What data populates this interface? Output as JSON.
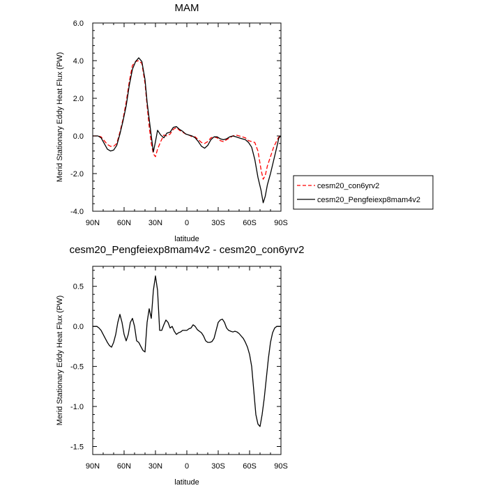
{
  "chart_data": [
    {
      "type": "line",
      "title": "MAM",
      "xlabel": "latitude",
      "ylabel": "Merid Stationary Eddy Heat Flux (PW)",
      "xlim": [
        90,
        -90
      ],
      "ylim": [
        -4.0,
        6.0
      ],
      "x_ticks": [
        {
          "value": 90,
          "label": "90N"
        },
        {
          "value": 60,
          "label": "60N"
        },
        {
          "value": 30,
          "label": "30N"
        },
        {
          "value": 0,
          "label": "0"
        },
        {
          "value": -30,
          "label": "30S"
        },
        {
          "value": -60,
          "label": "60S"
        },
        {
          "value": -90,
          "label": "90S"
        }
      ],
      "y_ticks": [
        {
          "value": 6.0,
          "label": "6.0"
        },
        {
          "value": 4.0,
          "label": "4.0"
        },
        {
          "value": 2.0,
          "label": "2.0"
        },
        {
          "value": 0.0,
          "label": "0.0"
        },
        {
          "value": -2.0,
          "label": "-2.0"
        },
        {
          "value": -4.0,
          "label": "-4.0"
        }
      ],
      "legend_position": "right",
      "series": [
        {
          "name": "cesm20_con6yrv2",
          "color": "#ff0000",
          "style": "dashed",
          "x": [
            90,
            85,
            82,
            79,
            76,
            73,
            70,
            67,
            64,
            61,
            58,
            55,
            52,
            49,
            46,
            43,
            40,
            38,
            36,
            34,
            32,
            30,
            28,
            25,
            22,
            19,
            16,
            13,
            10,
            7,
            4,
            1,
            -2,
            -5,
            -8,
            -11,
            -14,
            -17,
            -20,
            -23,
            -26,
            -29,
            -32,
            -35,
            -38,
            -41,
            -44,
            -47,
            -50,
            -53,
            -56,
            -59,
            -62,
            -65,
            -68,
            -71,
            -73,
            -75,
            -77,
            -80,
            -83,
            -86,
            -88,
            -90
          ],
          "y": [
            0.0,
            0.0,
            -0.05,
            -0.25,
            -0.45,
            -0.55,
            -0.55,
            -0.4,
            0.2,
            0.9,
            1.8,
            2.9,
            3.75,
            3.95,
            4.0,
            3.85,
            2.8,
            1.6,
            0.5,
            -0.4,
            -0.95,
            -1.1,
            -0.7,
            -0.3,
            0.05,
            0.0,
            0.1,
            0.35,
            0.45,
            0.3,
            0.2,
            0.1,
            0.05,
            -0.05,
            -0.05,
            -0.2,
            -0.35,
            -0.4,
            -0.3,
            -0.1,
            -0.05,
            -0.1,
            -0.25,
            -0.3,
            -0.2,
            -0.1,
            0.0,
            0.05,
            0.0,
            -0.05,
            -0.1,
            -0.25,
            -0.3,
            -0.35,
            -0.8,
            -1.8,
            -2.3,
            -2.1,
            -1.6,
            -1.1,
            -0.6,
            -0.25,
            -0.05,
            0.0
          ]
        },
        {
          "name": "cesm20_Pengfeiexp8mam4v2",
          "color": "#000000",
          "style": "solid",
          "x": [
            90,
            85,
            82,
            79,
            76,
            73,
            70,
            67,
            64,
            61,
            58,
            55,
            52,
            49,
            46,
            43,
            40,
            38,
            36,
            34,
            32,
            30,
            28,
            25,
            22,
            19,
            16,
            13,
            10,
            7,
            4,
            1,
            -2,
            -5,
            -8,
            -11,
            -14,
            -17,
            -20,
            -23,
            -26,
            -29,
            -32,
            -35,
            -38,
            -41,
            -44,
            -47,
            -50,
            -53,
            -56,
            -59,
            -62,
            -65,
            -68,
            -71,
            -73,
            -75,
            -77,
            -80,
            -83,
            -86,
            -88,
            -90
          ],
          "y": [
            0.0,
            0.0,
            -0.1,
            -0.4,
            -0.7,
            -0.8,
            -0.75,
            -0.5,
            0.1,
            0.8,
            1.6,
            2.7,
            3.55,
            3.95,
            4.15,
            3.95,
            3.0,
            1.8,
            0.9,
            0.0,
            -0.85,
            -0.3,
            0.3,
            0.05,
            -0.1,
            0.15,
            0.2,
            0.45,
            0.5,
            0.35,
            0.25,
            0.1,
            0.05,
            0.0,
            -0.1,
            -0.3,
            -0.55,
            -0.65,
            -0.5,
            -0.2,
            -0.05,
            -0.05,
            -0.15,
            -0.2,
            -0.15,
            -0.05,
            0.0,
            -0.05,
            -0.1,
            -0.15,
            -0.2,
            -0.35,
            -0.6,
            -1.25,
            -2.2,
            -2.9,
            -3.55,
            -3.2,
            -2.6,
            -2.0,
            -1.3,
            -0.6,
            -0.1,
            0.0
          ]
        }
      ]
    },
    {
      "type": "line",
      "title": "cesm20_Pengfeiexp8mam4v2 - cesm20_con6yrv2",
      "xlabel": "latitude",
      "ylabel": "Merid Stationary Eddy Heat Flux (PW)",
      "xlim": [
        90,
        -90
      ],
      "ylim": [
        -1.6,
        0.75
      ],
      "x_ticks": [
        {
          "value": 90,
          "label": "90N"
        },
        {
          "value": 60,
          "label": "60N"
        },
        {
          "value": 30,
          "label": "30N"
        },
        {
          "value": 0,
          "label": "0"
        },
        {
          "value": -30,
          "label": "30S"
        },
        {
          "value": -60,
          "label": "60S"
        },
        {
          "value": -90,
          "label": "90S"
        }
      ],
      "y_ticks": [
        {
          "value": 0.5,
          "label": "0.5"
        },
        {
          "value": 0.0,
          "label": "0.0"
        },
        {
          "value": -0.5,
          "label": "-0.5"
        },
        {
          "value": -1.0,
          "label": "-1.0"
        },
        {
          "value": -1.5,
          "label": "-1.5"
        }
      ],
      "series": [
        {
          "color": "#000000",
          "style": "solid",
          "x": [
            90,
            86,
            84,
            82,
            80,
            78,
            76,
            74,
            72,
            70,
            68,
            66,
            64,
            62,
            60,
            58,
            56,
            54,
            52,
            50,
            48,
            46,
            44,
            42,
            40,
            38,
            36,
            34,
            32,
            30,
            28,
            26,
            24,
            22,
            20,
            18,
            16,
            14,
            12,
            10,
            8,
            6,
            4,
            2,
            0,
            -2,
            -4,
            -6,
            -8,
            -10,
            -12,
            -14,
            -16,
            -18,
            -20,
            -22,
            -24,
            -26,
            -28,
            -30,
            -32,
            -34,
            -36,
            -38,
            -40,
            -42,
            -44,
            -46,
            -48,
            -50,
            -52,
            -54,
            -56,
            -58,
            -60,
            -62,
            -64,
            -66,
            -68,
            -70,
            -72,
            -74,
            -76,
            -78,
            -80,
            -82,
            -84,
            -86,
            -88,
            -90
          ],
          "y": [
            0.0,
            0.0,
            -0.02,
            -0.05,
            -0.1,
            -0.15,
            -0.2,
            -0.24,
            -0.26,
            -0.2,
            -0.1,
            0.05,
            0.15,
            0.05,
            -0.1,
            -0.18,
            -0.1,
            0.05,
            0.1,
            0.0,
            -0.18,
            -0.2,
            -0.25,
            -0.3,
            -0.32,
            0.05,
            0.22,
            0.1,
            0.45,
            0.63,
            0.45,
            -0.05,
            -0.05,
            0.02,
            0.08,
            0.05,
            -0.02,
            0.0,
            -0.06,
            -0.1,
            -0.08,
            -0.07,
            -0.05,
            -0.05,
            -0.05,
            -0.03,
            -0.02,
            0.02,
            0.0,
            -0.04,
            -0.06,
            -0.08,
            -0.12,
            -0.18,
            -0.2,
            -0.2,
            -0.19,
            -0.15,
            -0.05,
            0.05,
            0.08,
            0.09,
            0.05,
            -0.02,
            -0.05,
            -0.06,
            -0.07,
            -0.06,
            -0.07,
            -0.09,
            -0.12,
            -0.15,
            -0.2,
            -0.26,
            -0.35,
            -0.5,
            -0.8,
            -1.1,
            -1.22,
            -1.25,
            -1.1,
            -0.9,
            -0.65,
            -0.4,
            -0.2,
            -0.08,
            -0.02,
            0.0,
            0.0,
            0.0
          ]
        }
      ]
    }
  ]
}
